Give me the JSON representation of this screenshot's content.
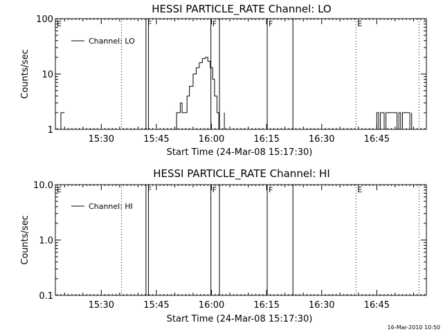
{
  "footer": "16-Mar-2010 10:50",
  "chart_data": [
    {
      "type": "line",
      "title": "HESSI PARTICLE_RATE Channel: LO",
      "xlabel": "Start Time (24-Mar-08 15:17:30)",
      "ylabel": "Counts/sec",
      "yscale": "log",
      "ylim": [
        1,
        100
      ],
      "xlim": [
        "15:17:30",
        "16:58:30"
      ],
      "xticks": [
        "15:30",
        "15:45",
        "16:00",
        "16:15",
        "16:30",
        "16:45"
      ],
      "yticks": [
        "1",
        "10",
        "100"
      ],
      "legend": {
        "position": "top-left",
        "entries": [
          "Channel: LO"
        ]
      },
      "grid": false,
      "series": [
        {
          "name": "Channel: LO",
          "segments": [
            {
              "x": [
                "15:17:30",
                "15:18:00",
                "15:19:00",
                "15:20:00"
              ],
              "y": [
                1,
                1,
                2,
                2
              ]
            },
            {
              "x": [
                "15:50:00",
                "15:50:30",
                "15:51:30",
                "15:52:00",
                "15:52:40",
                "15:53:20",
                "15:54:00",
                "15:55:00",
                "15:55:50",
                "15:56:40",
                "15:57:30",
                "15:58:20",
                "15:59:00",
                "15:59:40",
                "16:00:20",
                "16:00:50",
                "16:01:30",
                "16:02:00"
              ],
              "y": [
                1,
                2,
                3,
                2,
                2,
                4,
                6,
                10,
                13,
                16,
                19,
                20,
                17,
                13,
                8,
                4,
                2,
                1
              ]
            },
            {
              "x": [
                "16:03:00",
                "16:03:30"
              ],
              "y": [
                1,
                2
              ]
            },
            {
              "x": [
                "16:44:30",
                "16:45:00",
                "16:45:30",
                "16:46:00",
                "16:47:00",
                "16:47:30",
                "16:48:00",
                "16:50:00",
                "16:50:30",
                "16:51:00",
                "16:51:30",
                "16:52:00",
                "16:54:00",
                "16:54:30"
              ],
              "y": [
                1,
                2,
                1,
                2,
                1,
                2,
                2,
                2,
                1,
                2,
                1,
                2,
                1,
                2
              ]
            }
          ]
        }
      ],
      "markers": [
        {
          "time": "15:17:30",
          "style": "dotted",
          "label": "E"
        },
        {
          "time": "15:35:30",
          "style": "dotted",
          "label": ""
        },
        {
          "time": "15:42:10",
          "style": "solid",
          "label": "F"
        },
        {
          "time": "15:42:50",
          "style": "solid",
          "label": ""
        },
        {
          "time": "15:59:50",
          "style": "solid",
          "label": "F"
        },
        {
          "time": "16:02:10",
          "style": "solid",
          "label": ""
        },
        {
          "time": "16:15:10",
          "style": "solid",
          "label": "F"
        },
        {
          "time": "16:22:10",
          "style": "solid",
          "label": ""
        },
        {
          "time": "16:39:20",
          "style": "dotted",
          "label": "E"
        },
        {
          "time": "16:56:30",
          "style": "dotted",
          "label": ""
        }
      ]
    },
    {
      "type": "line",
      "title": "HESSI PARTICLE_RATE Channel: HI",
      "xlabel": "Start Time (24-Mar-08 15:17:30)",
      "ylabel": "Counts/sec",
      "yscale": "log",
      "ylim": [
        0.1,
        10
      ],
      "xlim": [
        "15:17:30",
        "16:58:30"
      ],
      "xticks": [
        "15:30",
        "15:45",
        "16:00",
        "16:15",
        "16:30",
        "16:45"
      ],
      "yticks": [
        "0.1",
        "1.0",
        "10.0"
      ],
      "legend": {
        "position": "top-left",
        "entries": [
          "Channel: HI"
        ]
      },
      "grid": false,
      "series": [
        {
          "name": "Channel: HI",
          "segments": []
        }
      ],
      "markers": [
        {
          "time": "15:17:30",
          "style": "dotted",
          "label": "E"
        },
        {
          "time": "15:35:30",
          "style": "dotted",
          "label": ""
        },
        {
          "time": "15:42:10",
          "style": "solid",
          "label": "F"
        },
        {
          "time": "15:42:50",
          "style": "solid",
          "label": ""
        },
        {
          "time": "15:59:50",
          "style": "solid",
          "label": "F"
        },
        {
          "time": "16:02:10",
          "style": "solid",
          "label": ""
        },
        {
          "time": "16:15:10",
          "style": "solid",
          "label": "F"
        },
        {
          "time": "16:22:10",
          "style": "solid",
          "label": ""
        },
        {
          "time": "16:39:20",
          "style": "dotted",
          "label": "E"
        },
        {
          "time": "16:56:30",
          "style": "dotted",
          "label": ""
        }
      ]
    }
  ]
}
